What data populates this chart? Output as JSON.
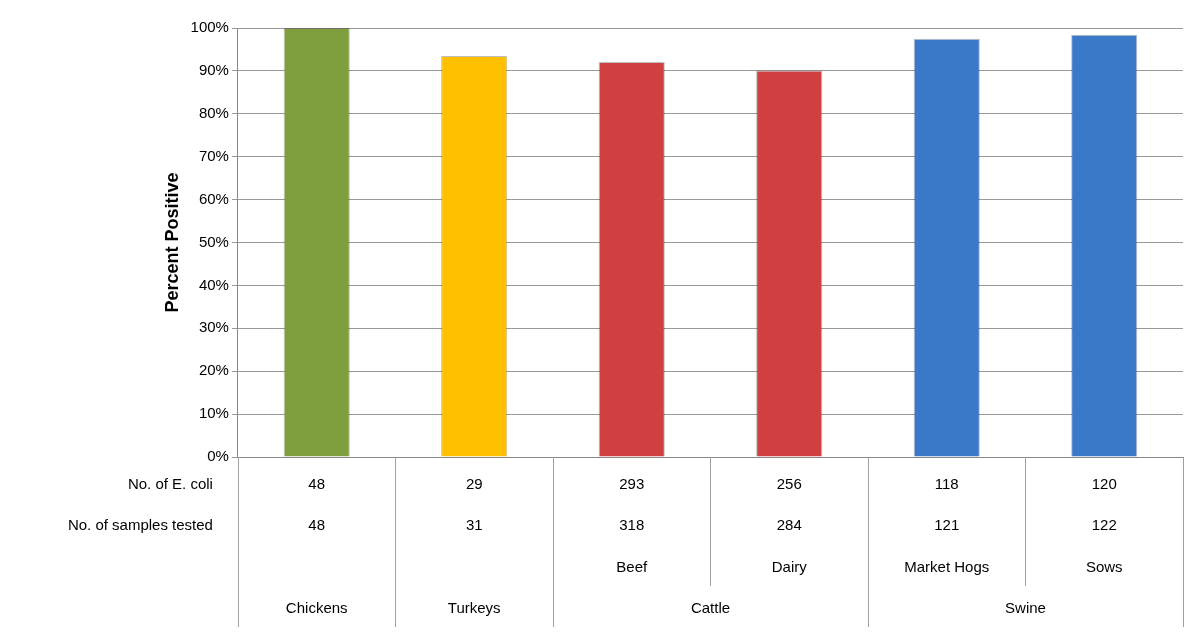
{
  "chart_data": {
    "type": "bar",
    "ylabel": "Percent Positive",
    "categories": [
      null,
      null,
      "Beef",
      "Dairy",
      "Market Hogs",
      "Sows"
    ],
    "values": [
      100,
      93.5,
      92.1,
      90.1,
      97.5,
      98.4
    ],
    "colors": [
      "#7f9f3f",
      "#ffc000",
      "#d04040",
      "#d04040",
      "#3a78c8",
      "#3a78c8"
    ],
    "ylim": [
      0,
      100
    ],
    "yticks": [
      {
        "value": 0,
        "label": "0%"
      },
      {
        "value": 10,
        "label": "10%"
      },
      {
        "value": 20,
        "label": "20%"
      },
      {
        "value": 30,
        "label": "30%"
      },
      {
        "value": 40,
        "label": "40%"
      },
      {
        "value": 50,
        "label": "50%"
      },
      {
        "value": 60,
        "label": "60%"
      },
      {
        "value": 70,
        "label": "70%"
      },
      {
        "value": 80,
        "label": "80%"
      },
      {
        "value": 90,
        "label": "90%"
      },
      {
        "value": 100,
        "label": "100%"
      }
    ],
    "grid": "y",
    "legend": false,
    "annotations": [
      "No. of E. coli",
      "48",
      "29",
      "293",
      "256",
      "118",
      "120",
      "No. of samples tested",
      "48",
      "31",
      "318",
      "284",
      "121",
      "122",
      "Chickens",
      "Turkeys",
      "Cattle",
      "Swine"
    ]
  }
}
